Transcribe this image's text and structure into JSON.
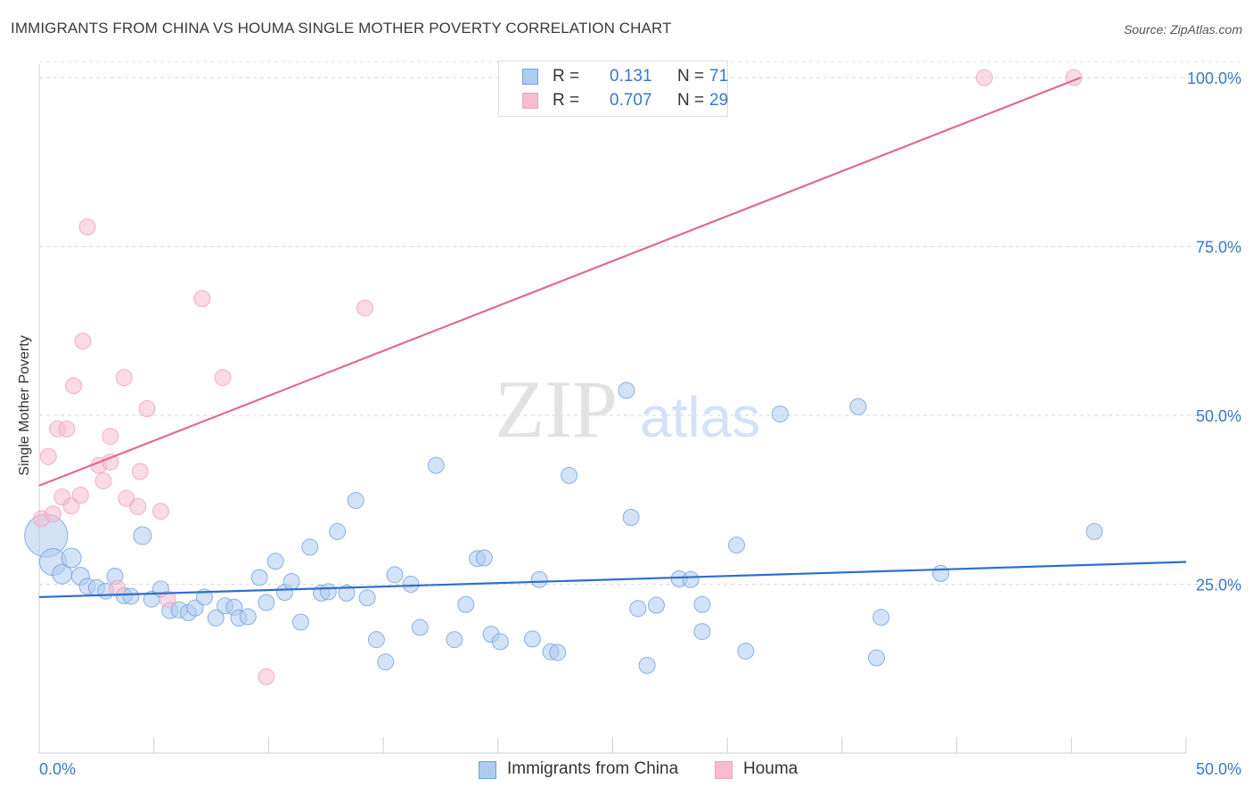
{
  "header": {
    "title": "IMMIGRANTS FROM CHINA VS HOUMA SINGLE MOTHER POVERTY CORRELATION CHART",
    "source": "Source: ZipAtlas.com"
  },
  "watermark": {
    "zip": "ZIP",
    "atlas": "atlas"
  },
  "legend_top": {
    "rows": [
      {
        "r_label": "R =",
        "r_value": "0.131",
        "n_label": "N =",
        "n_value": "71",
        "color": "#aecbf0"
      },
      {
        "r_label": "R =",
        "r_value": "0.707",
        "n_label": "N =",
        "n_value": "29",
        "color": "#f6bccd"
      }
    ]
  },
  "legend_bottom": {
    "items": [
      {
        "label": "Immigrants from China",
        "color": "#aecbf0"
      },
      {
        "label": "Houma",
        "color": "#f6bccd"
      }
    ]
  },
  "chart_data": {
    "type": "scatter",
    "title": "IMMIGRANTS FROM CHINA VS HOUMA SINGLE MOTHER POVERTY CORRELATION CHART",
    "xlabel": "",
    "ylabel": "Single Mother Poverty",
    "xlim": [
      0,
      50
    ],
    "ylim": [
      0,
      102
    ],
    "x_tick_labels": [
      "0.0%",
      "50.0%"
    ],
    "y_ticks": [
      25,
      50,
      75,
      100
    ],
    "y_tick_labels": [
      "25.0%",
      "50.0%",
      "75.0%",
      "100.0%"
    ],
    "grid": true,
    "legend": "top-center",
    "series": [
      {
        "name": "Immigrants from China",
        "color": "#6fa0dd",
        "fill": "#aecbf0",
        "line_color": "#2e6fcb",
        "trend": [
          [
            0,
            23.1
          ],
          [
            50,
            28.3
          ]
        ],
        "points": [
          [
            0.3,
            32.2
          ],
          [
            0.6,
            28.3
          ],
          [
            1.0,
            26.5
          ],
          [
            1.4,
            28.9
          ],
          [
            1.8,
            26.2
          ],
          [
            2.1,
            24.7
          ],
          [
            2.5,
            24.5
          ],
          [
            2.9,
            24.0
          ],
          [
            3.3,
            26.2
          ],
          [
            3.7,
            23.3
          ],
          [
            4.0,
            23.2
          ],
          [
            4.5,
            32.2
          ],
          [
            4.9,
            22.8
          ],
          [
            5.3,
            24.3
          ],
          [
            5.7,
            21.1
          ],
          [
            6.1,
            21.2
          ],
          [
            6.5,
            20.8
          ],
          [
            6.8,
            21.5
          ],
          [
            7.2,
            23.1
          ],
          [
            7.7,
            20.0
          ],
          [
            8.1,
            21.8
          ],
          [
            8.5,
            21.6
          ],
          [
            8.7,
            20.0
          ],
          [
            9.1,
            20.2
          ],
          [
            9.6,
            26.0
          ],
          [
            9.9,
            22.3
          ],
          [
            10.3,
            28.4
          ],
          [
            10.7,
            23.8
          ],
          [
            11.0,
            25.4
          ],
          [
            11.4,
            19.4
          ],
          [
            11.8,
            30.5
          ],
          [
            12.3,
            23.7
          ],
          [
            12.6,
            23.9
          ],
          [
            13.0,
            32.8
          ],
          [
            13.4,
            23.7
          ],
          [
            13.8,
            37.4
          ],
          [
            14.3,
            23.0
          ],
          [
            14.7,
            16.8
          ],
          [
            15.1,
            13.5
          ],
          [
            15.5,
            26.4
          ],
          [
            16.2,
            25.0
          ],
          [
            16.6,
            18.6
          ],
          [
            17.3,
            42.6
          ],
          [
            18.1,
            16.8
          ],
          [
            18.6,
            22.0
          ],
          [
            19.1,
            28.8
          ],
          [
            19.4,
            28.9
          ],
          [
            19.7,
            17.6
          ],
          [
            20.1,
            16.5
          ],
          [
            21.5,
            16.9
          ],
          [
            21.8,
            25.7
          ],
          [
            22.3,
            15.0
          ],
          [
            22.6,
            14.9
          ],
          [
            23.1,
            41.1
          ],
          [
            25.6,
            53.7
          ],
          [
            25.8,
            34.9
          ],
          [
            26.1,
            21.4
          ],
          [
            26.5,
            13.0
          ],
          [
            26.9,
            21.9
          ],
          [
            27.9,
            25.8
          ],
          [
            28.4,
            25.7
          ],
          [
            28.9,
            22.0
          ],
          [
            28.9,
            18.0
          ],
          [
            30.4,
            30.8
          ],
          [
            30.8,
            15.1
          ],
          [
            32.3,
            50.2
          ],
          [
            35.7,
            51.3
          ],
          [
            36.5,
            14.1
          ],
          [
            36.7,
            20.1
          ],
          [
            39.3,
            26.6
          ],
          [
            46.0,
            32.8
          ]
        ],
        "sizes": [
          24,
          15,
          11,
          11,
          10,
          9,
          9,
          9,
          9,
          9,
          9,
          10,
          9,
          9,
          9,
          9,
          9,
          9,
          9,
          9,
          9,
          9,
          9,
          9,
          9,
          9,
          9,
          9,
          9,
          9,
          9,
          9,
          9,
          9,
          9,
          9,
          9,
          9,
          9,
          9,
          9,
          9,
          9,
          9,
          9,
          9,
          9,
          9,
          9,
          9,
          9,
          9,
          9,
          9,
          9,
          9,
          9,
          9,
          9,
          9,
          9,
          9,
          9,
          9,
          9,
          9,
          9,
          9,
          9,
          9,
          9
        ]
      },
      {
        "name": "Houma",
        "color": "#eea3ba",
        "fill": "#f6bccd",
        "line_color": "#e06a93",
        "trend": [
          [
            0,
            39.6
          ],
          [
            45.4,
            100.0
          ]
        ],
        "points": [
          [
            0.1,
            34.7
          ],
          [
            0.4,
            43.9
          ],
          [
            0.6,
            35.4
          ],
          [
            0.8,
            48.0
          ],
          [
            1.0,
            37.9
          ],
          [
            1.2,
            48.0
          ],
          [
            1.4,
            36.6
          ],
          [
            1.5,
            54.4
          ],
          [
            1.8,
            38.2
          ],
          [
            1.9,
            61.0
          ],
          [
            2.1,
            77.9
          ],
          [
            2.6,
            42.6
          ],
          [
            2.8,
            40.3
          ],
          [
            3.1,
            43.1
          ],
          [
            3.1,
            46.9
          ],
          [
            3.4,
            24.4
          ],
          [
            3.7,
            55.6
          ],
          [
            3.8,
            37.7
          ],
          [
            4.3,
            36.5
          ],
          [
            4.4,
            41.7
          ],
          [
            4.7,
            51.0
          ],
          [
            5.3,
            35.8
          ],
          [
            5.6,
            22.8
          ],
          [
            7.1,
            67.3
          ],
          [
            8.0,
            55.6
          ],
          [
            9.9,
            11.3
          ],
          [
            14.2,
            65.9
          ],
          [
            41.2,
            100.0
          ],
          [
            45.1,
            100.0
          ]
        ],
        "sizes": [
          9,
          9,
          9,
          9,
          9,
          9,
          9,
          9,
          9,
          9,
          9,
          9,
          9,
          9,
          9,
          9,
          9,
          9,
          9,
          9,
          9,
          9,
          9,
          9,
          9,
          9,
          9,
          9,
          9
        ]
      }
    ]
  }
}
